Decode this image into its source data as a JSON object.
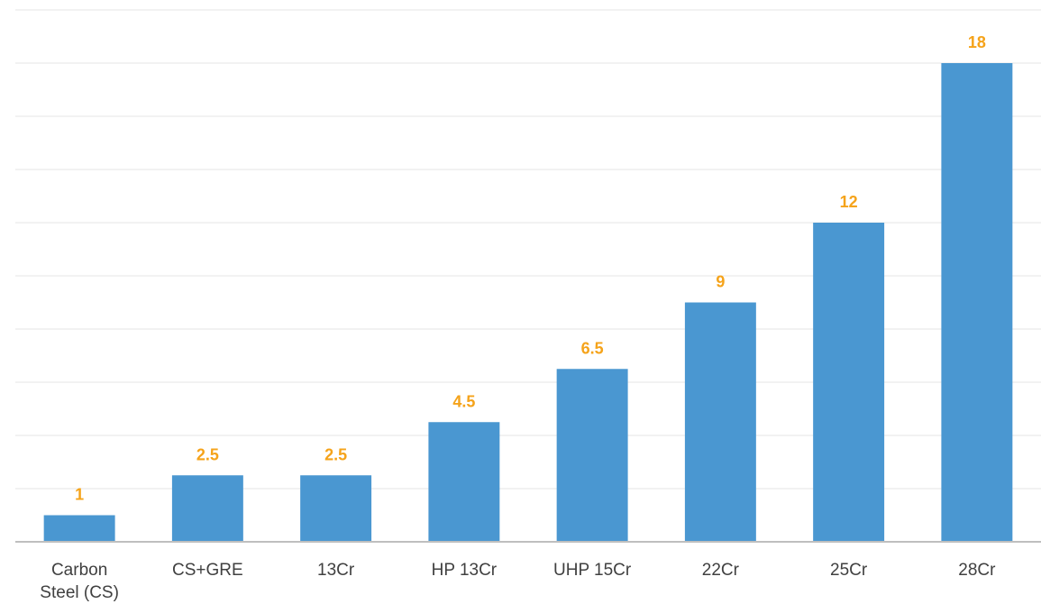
{
  "chart_data": {
    "type": "bar",
    "title": "",
    "xlabel": "",
    "ylabel": "",
    "categories": [
      "Carbon Steel (CS)",
      "CS+GRE",
      "13Cr",
      "HP 13Cr",
      "UHP 15Cr",
      "22Cr",
      "25Cr",
      "28Cr"
    ],
    "category_lines": [
      [
        "Carbon",
        "Steel (CS)"
      ],
      [
        "CS+GRE"
      ],
      [
        "13Cr"
      ],
      [
        "HP 13Cr"
      ],
      [
        "UHP 15Cr"
      ],
      [
        "22Cr"
      ],
      [
        "25Cr"
      ],
      [
        "28Cr"
      ]
    ],
    "values": [
      1,
      2.5,
      2.5,
      4.5,
      6.5,
      9,
      12,
      18
    ],
    "data_labels": [
      "1",
      "2.5",
      "2.5",
      "4.5",
      "6.5",
      "9",
      "12",
      "18"
    ],
    "ylim": [
      0,
      20
    ],
    "y_tick_step": 2,
    "grid": true,
    "legend": "none",
    "colors": {
      "bar": "#4a97d1",
      "data_label": "#f5a31a",
      "grid": "#e6e6e6",
      "axis": "#bfbfbf"
    }
  }
}
